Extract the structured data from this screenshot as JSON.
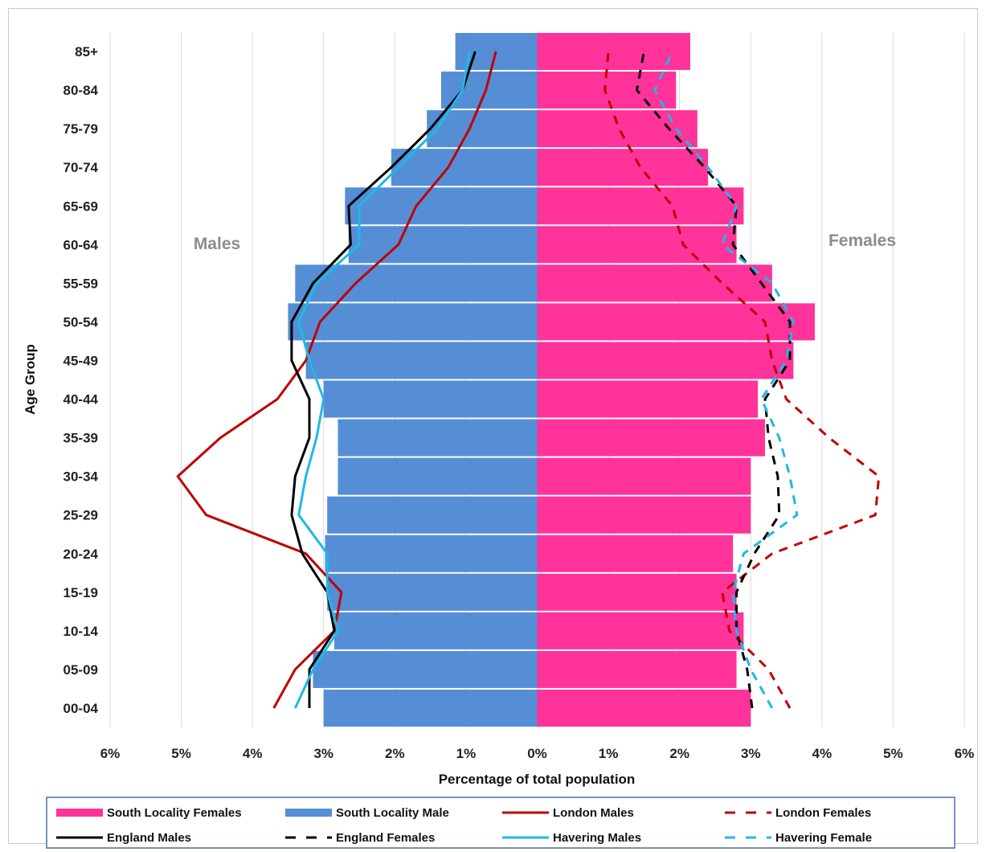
{
  "chart_data": {
    "type": "bar",
    "subtype": "population-pyramid",
    "title": "",
    "xlabel": "Percentage of total population",
    "ylabel": "Age Group",
    "xlim": [
      -6,
      6
    ],
    "xticks": [
      -6,
      -5,
      -4,
      -3,
      -2,
      -1,
      0,
      1,
      2,
      3,
      4,
      5,
      6
    ],
    "xtick_labels": [
      "6%",
      "5%",
      "4%",
      "3%",
      "2%",
      "1%",
      "0%",
      "1%",
      "2%",
      "3%",
      "4%",
      "5%",
      "6%"
    ],
    "categories": [
      "00-04",
      "05-09",
      "10-14",
      "15-19",
      "20-24",
      "25-29",
      "30-34",
      "35-39",
      "40-44",
      "45-49",
      "50-54",
      "55-59",
      "60-64",
      "65-69",
      "70-74",
      "75-79",
      "80-84",
      "85+"
    ],
    "grid": "vertical",
    "legend_position": "bottom",
    "annotations": [
      {
        "text": "Males",
        "side": "left"
      },
      {
        "text": "Females",
        "side": "right"
      }
    ],
    "series": [
      {
        "name": "South Locality Females",
        "kind": "bar",
        "side": "right",
        "color": "#ff3399",
        "values": [
          3.0,
          2.8,
          2.9,
          2.8,
          2.75,
          3.0,
          3.0,
          3.2,
          3.1,
          3.6,
          3.9,
          3.3,
          2.8,
          2.9,
          2.4,
          2.25,
          1.95,
          2.15
        ]
      },
      {
        "name": "South Locality Male",
        "kind": "bar",
        "side": "left",
        "color": "#558ed5",
        "values": [
          3.0,
          3.15,
          2.85,
          2.95,
          2.98,
          2.95,
          2.8,
          2.8,
          3.0,
          3.25,
          3.5,
          3.4,
          2.65,
          2.7,
          2.05,
          1.55,
          1.35,
          1.15
        ]
      },
      {
        "name": "London Males",
        "kind": "line",
        "side": "left",
        "color": "#c00000",
        "dash": "solid",
        "values": [
          3.7,
          3.4,
          2.85,
          2.75,
          3.25,
          4.65,
          5.05,
          4.45,
          3.65,
          3.25,
          3.05,
          2.55,
          1.95,
          1.7,
          1.25,
          0.95,
          0.72,
          0.58
        ]
      },
      {
        "name": "London Females",
        "kind": "line",
        "side": "right",
        "color": "#c00000",
        "dash": "dashed",
        "values": [
          3.55,
          3.25,
          2.7,
          2.6,
          3.3,
          4.75,
          4.8,
          4.1,
          3.5,
          3.3,
          3.2,
          2.6,
          2.05,
          1.9,
          1.45,
          1.15,
          0.95,
          1.0
        ]
      },
      {
        "name": "England Males",
        "kind": "line",
        "side": "left",
        "color": "#000000",
        "dash": "solid",
        "values": [
          3.2,
          3.2,
          2.85,
          2.95,
          3.3,
          3.45,
          3.4,
          3.2,
          3.2,
          3.45,
          3.45,
          3.15,
          2.62,
          2.65,
          2.05,
          1.5,
          1.05,
          0.87
        ]
      },
      {
        "name": "England Females",
        "kind": "line",
        "side": "right",
        "color": "#000000",
        "dash": "dashed",
        "values": [
          3.02,
          2.95,
          2.8,
          2.8,
          3.05,
          3.4,
          3.38,
          3.25,
          3.2,
          3.55,
          3.55,
          3.15,
          2.75,
          2.8,
          2.35,
          1.85,
          1.4,
          1.5
        ]
      },
      {
        "name": "Havering Males",
        "kind": "line",
        "side": "left",
        "color": "#1fb8e6",
        "dash": "solid",
        "values": [
          3.4,
          3.15,
          2.8,
          2.95,
          2.95,
          3.35,
          3.25,
          3.1,
          3.0,
          3.2,
          3.35,
          3.1,
          2.5,
          2.5,
          1.95,
          1.4,
          1.05,
          0.95
        ]
      },
      {
        "name": "Havering Female",
        "kind": "line",
        "side": "right",
        "color": "#1fb8e6",
        "dash": "dashed",
        "values": [
          3.3,
          3.0,
          2.8,
          2.75,
          2.9,
          3.65,
          3.55,
          3.4,
          3.15,
          3.5,
          3.6,
          3.3,
          2.6,
          2.8,
          2.4,
          1.95,
          1.65,
          1.9
        ]
      }
    ],
    "legend": [
      {
        "name": "South Locality Females",
        "kind": "bar",
        "color": "#ff3399"
      },
      {
        "name": "South Locality Male",
        "kind": "bar",
        "color": "#558ed5"
      },
      {
        "name": "London Males",
        "kind": "line",
        "color": "#c00000",
        "dash": "solid"
      },
      {
        "name": "London Females",
        "kind": "line",
        "color": "#c00000",
        "dash": "dashed"
      },
      {
        "name": "England Males",
        "kind": "line",
        "color": "#000000",
        "dash": "solid"
      },
      {
        "name": "England Females",
        "kind": "line",
        "color": "#000000",
        "dash": "dashed"
      },
      {
        "name": "Havering Males",
        "kind": "line",
        "color": "#1fb8e6",
        "dash": "solid"
      },
      {
        "name": "Havering Female",
        "kind": "line",
        "color": "#1fb8e6",
        "dash": "dashed"
      }
    ]
  }
}
